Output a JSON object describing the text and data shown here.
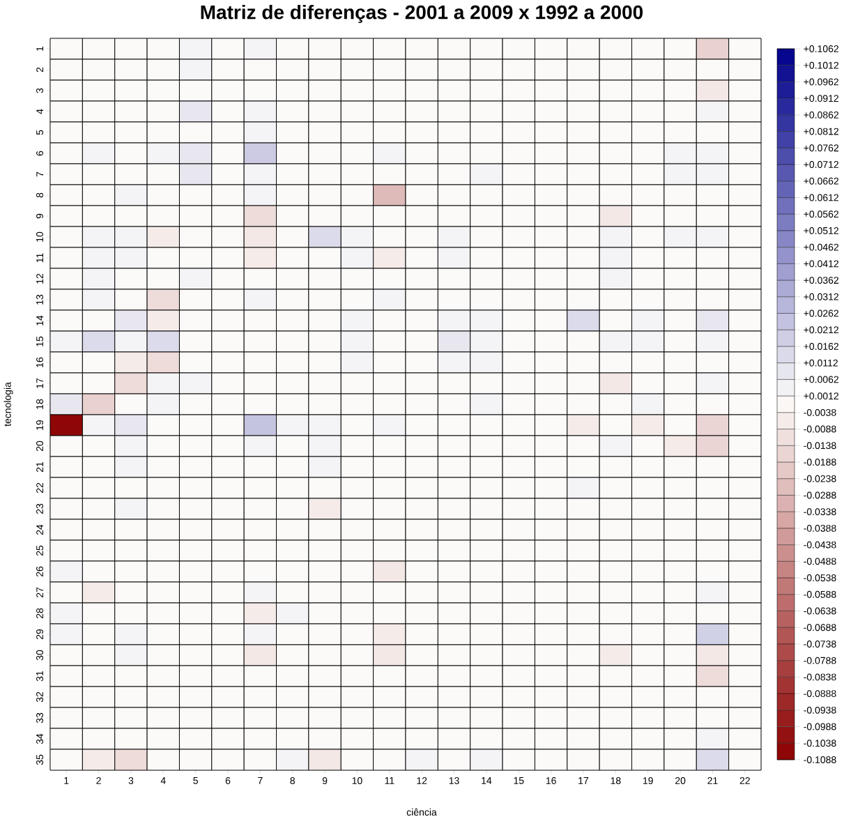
{
  "chart_data": {
    "type": "heatmap",
    "title": "Matriz de diferenças - 2001 a 2009 x 1992 a 2000",
    "xlabel": "ciência",
    "ylabel": "tecnologia",
    "categories": [
      "1",
      "2",
      "3",
      "4",
      "5",
      "6",
      "7",
      "8",
      "9",
      "10",
      "11",
      "12",
      "13",
      "14",
      "15",
      "16",
      "17",
      "18",
      "19",
      "20",
      "21",
      "22"
    ],
    "y_categories": [
      "1",
      "2",
      "3",
      "4",
      "5",
      "6",
      "7",
      "8",
      "9",
      "10",
      "11",
      "12",
      "13",
      "14",
      "15",
      "16",
      "17",
      "18",
      "19",
      "20",
      "21",
      "22",
      "23",
      "24",
      "25",
      "26",
      "27",
      "28",
      "29",
      "30",
      "31",
      "32",
      "33",
      "34",
      "35"
    ],
    "cells": [
      [
        0,
        0,
        0,
        0,
        0.003,
        0,
        0.003,
        0,
        0,
        0,
        0,
        0,
        0,
        0,
        0,
        0,
        0,
        0,
        0,
        0,
        -0.018,
        0
      ],
      [
        0,
        0,
        0,
        0,
        0.003,
        0,
        0,
        0,
        0,
        0,
        0,
        0,
        0,
        0,
        0,
        0,
        0,
        0,
        0,
        0,
        0,
        0
      ],
      [
        0,
        0,
        0,
        0,
        0,
        0,
        0,
        0,
        0,
        0,
        0,
        0,
        0,
        0,
        0,
        0,
        0,
        0,
        0,
        0,
        -0.008,
        0
      ],
      [
        0,
        0,
        0,
        0,
        0.008,
        0,
        0.003,
        0,
        0,
        0,
        0,
        0,
        0,
        0,
        0,
        0,
        0,
        0,
        0,
        0,
        0.003,
        0
      ],
      [
        0,
        0,
        0,
        0,
        0,
        0,
        0.003,
        0,
        0,
        0,
        0,
        0,
        0,
        0,
        0,
        0,
        0,
        0,
        0,
        0,
        0,
        0
      ],
      [
        0,
        0.003,
        0,
        0.003,
        0.008,
        0,
        0.02,
        0,
        0,
        0,
        0.003,
        0,
        0,
        0,
        0,
        0,
        0,
        0,
        0,
        0.003,
        0.003,
        0
      ],
      [
        0,
        0,
        0,
        0,
        0.008,
        0,
        0.003,
        0,
        0,
        0,
        0,
        0,
        0,
        0.003,
        0,
        0,
        0,
        0,
        0,
        0.003,
        0.003,
        0
      ],
      [
        0,
        0,
        0.003,
        0,
        0,
        0,
        0.003,
        0,
        0,
        0,
        -0.028,
        0,
        0,
        0,
        0,
        0,
        0,
        0,
        0,
        0,
        0,
        0
      ],
      [
        0,
        0,
        0,
        0,
        0,
        0,
        -0.013,
        0,
        0,
        0,
        0,
        0,
        0,
        0,
        0,
        0,
        0,
        -0.008,
        0,
        0,
        0,
        0
      ],
      [
        0,
        0.003,
        0.003,
        -0.006,
        0,
        0,
        -0.008,
        0,
        0.013,
        0.003,
        0,
        0,
        0.003,
        0,
        0,
        0,
        0,
        0.003,
        0,
        0.003,
        0.003,
        0
      ],
      [
        0,
        0.003,
        0.003,
        0,
        0,
        0,
        -0.006,
        0,
        0,
        0.003,
        -0.006,
        0,
        0.003,
        0,
        0,
        0,
        0,
        0.003,
        0,
        0,
        0,
        0
      ],
      [
        0,
        0.003,
        0,
        0,
        0.003,
        0,
        0,
        0,
        0,
        0,
        0,
        0,
        0,
        0,
        0,
        0,
        0,
        0.003,
        0,
        0,
        0,
        0
      ],
      [
        0,
        0.003,
        0,
        -0.013,
        0,
        0,
        0.003,
        0,
        0,
        0,
        0.003,
        0,
        0,
        0,
        0,
        0,
        0,
        0,
        0,
        0,
        0,
        0
      ],
      [
        0,
        0,
        0.008,
        -0.006,
        0,
        0,
        0,
        0,
        0,
        0.003,
        0,
        0,
        0.003,
        0.003,
        0,
        0,
        0.013,
        0,
        0.003,
        0,
        0.008,
        0
      ],
      [
        0.003,
        0.013,
        0.003,
        0.013,
        0,
        0,
        0,
        0,
        0,
        0.003,
        0,
        0,
        0.008,
        0.003,
        0,
        0,
        0,
        0.003,
        0.003,
        0,
        0.003,
        0
      ],
      [
        0,
        0,
        -0.006,
        -0.013,
        0,
        0,
        0,
        0,
        0,
        0.003,
        0,
        0,
        0.003,
        0.003,
        0,
        0,
        0,
        0,
        0,
        0,
        0,
        0
      ],
      [
        0,
        0,
        -0.013,
        0.003,
        0.003,
        0,
        0,
        0,
        0,
        0,
        0,
        0,
        0,
        0,
        0,
        0,
        0,
        -0.008,
        0,
        0,
        0.003,
        0
      ],
      [
        0.008,
        -0.018,
        0,
        0.003,
        0,
        0,
        0,
        0,
        0,
        0,
        0,
        0,
        0,
        0.003,
        0,
        0,
        0,
        0,
        0.003,
        0,
        0,
        0
      ],
      [
        -0.1063,
        0.003,
        0.008,
        0,
        0,
        0,
        0.023,
        0.003,
        0.003,
        0,
        0.003,
        0,
        0,
        0,
        0,
        0,
        -0.006,
        0,
        -0.006,
        0,
        -0.016,
        0
      ],
      [
        0,
        0,
        0.003,
        0,
        0,
        0,
        0.003,
        0,
        0.003,
        0,
        0,
        0,
        0,
        0,
        0,
        0,
        0,
        0.003,
        0,
        -0.006,
        -0.016,
        0
      ],
      [
        0,
        0,
        0.003,
        0,
        0,
        0,
        0,
        0,
        0.003,
        0,
        0,
        0,
        0,
        0,
        0,
        0,
        0,
        0,
        0,
        0,
        0,
        0
      ],
      [
        0,
        0,
        0,
        0,
        0,
        0,
        0,
        0,
        0,
        0,
        0,
        0,
        0,
        0,
        0,
        0,
        0.003,
        0,
        0,
        0,
        0,
        0
      ],
      [
        0,
        0,
        0.003,
        0,
        0,
        0,
        0,
        0,
        -0.006,
        0,
        0,
        0,
        0,
        0,
        0,
        0,
        0,
        0,
        0,
        0,
        0,
        0
      ],
      [
        0,
        0,
        0,
        0,
        0,
        0,
        0,
        0,
        0,
        0,
        0,
        0,
        0,
        0,
        0,
        0,
        0,
        0,
        0,
        0,
        0,
        0
      ],
      [
        0,
        0,
        0,
        0,
        0,
        0,
        0,
        0,
        0,
        0,
        0,
        0,
        0,
        0,
        0,
        0,
        0,
        0,
        0,
        0,
        0,
        0
      ],
      [
        0.003,
        0,
        0,
        0,
        0,
        0,
        0,
        0,
        0,
        0,
        -0.008,
        0,
        0,
        0,
        0,
        0,
        0,
        0,
        0,
        0,
        0,
        0
      ],
      [
        0,
        -0.006,
        0,
        0,
        0,
        0,
        0.003,
        0,
        0,
        0,
        0,
        0,
        0,
        0,
        0,
        0,
        0,
        0,
        0,
        0,
        0.003,
        0
      ],
      [
        0.003,
        0,
        0,
        0,
        0,
        0,
        -0.006,
        0.003,
        0,
        0,
        0,
        0,
        0,
        0,
        0,
        0,
        0,
        0,
        0,
        0,
        0,
        0
      ],
      [
        0.003,
        0,
        0.003,
        0,
        0,
        0,
        0.003,
        0,
        0,
        0,
        -0.006,
        0,
        0,
        0,
        0,
        0,
        0,
        0,
        0,
        0,
        0.018,
        0
      ],
      [
        0,
        0,
        0.003,
        0,
        0,
        0,
        -0.008,
        0,
        0,
        0,
        -0.008,
        0,
        0,
        0,
        0,
        0,
        0,
        -0.006,
        0,
        0,
        -0.008,
        0
      ],
      [
        0,
        0,
        0,
        0,
        0,
        0,
        0,
        0,
        0,
        0,
        0,
        0,
        0,
        0,
        0,
        0,
        0,
        0,
        0,
        0,
        -0.013,
        0
      ],
      [
        0,
        0,
        0,
        0,
        0,
        0,
        0,
        0,
        0,
        0,
        0,
        0,
        0,
        0,
        0,
        0,
        0,
        0,
        0,
        0,
        0,
        0
      ],
      [
        0,
        0,
        0,
        0,
        0,
        0,
        0,
        0,
        0,
        0,
        0,
        0,
        0,
        0,
        0,
        0,
        0,
        0,
        0,
        0,
        0,
        0
      ],
      [
        0,
        0,
        0,
        0,
        0,
        0,
        0,
        0,
        0,
        0,
        0,
        0,
        0,
        0,
        0,
        0,
        0,
        0,
        0,
        0,
        0.003,
        0
      ],
      [
        0,
        -0.006,
        -0.013,
        0,
        0,
        0,
        0,
        0.003,
        -0.008,
        0,
        0,
        0.003,
        0,
        0.003,
        0,
        0,
        0,
        0,
        0,
        0,
        0.013,
        0
      ]
    ],
    "clim": [
      -0.1088,
      0.1062
    ],
    "cticks": [
      {
        "value": 0.1062,
        "label": "+0.1062"
      },
      {
        "value": 0.1012,
        "label": "+0.1012"
      },
      {
        "value": 0.0962,
        "label": "+0.0962"
      },
      {
        "value": 0.0912,
        "label": "+0.0912"
      },
      {
        "value": 0.0862,
        "label": "+0.0862"
      },
      {
        "value": 0.0812,
        "label": "+0.0812"
      },
      {
        "value": 0.0762,
        "label": "+0.0762"
      },
      {
        "value": 0.0712,
        "label": "+0.0712"
      },
      {
        "value": 0.0662,
        "label": "+0.0662"
      },
      {
        "value": 0.0612,
        "label": "+0.0612"
      },
      {
        "value": 0.0562,
        "label": "+0.0562"
      },
      {
        "value": 0.0512,
        "label": "+0.0512"
      },
      {
        "value": 0.0462,
        "label": "+0.0462"
      },
      {
        "value": 0.0412,
        "label": "+0.0412"
      },
      {
        "value": 0.0362,
        "label": "+0.0362"
      },
      {
        "value": 0.0312,
        "label": "+0.0312"
      },
      {
        "value": 0.0262,
        "label": "+0.0262"
      },
      {
        "value": 0.0212,
        "label": "+0.0212"
      },
      {
        "value": 0.0162,
        "label": "+0.0162"
      },
      {
        "value": 0.0112,
        "label": "+0.0112"
      },
      {
        "value": 0.0062,
        "label": "+0.0062"
      },
      {
        "value": 0.0012,
        "label": "+0.0012"
      },
      {
        "value": -0.0038,
        "label": "-0.0038"
      },
      {
        "value": -0.0088,
        "label": "-0.0088"
      },
      {
        "value": -0.0138,
        "label": "-0.0138"
      },
      {
        "value": -0.0188,
        "label": "-0.0188"
      },
      {
        "value": -0.0238,
        "label": "-0.0238"
      },
      {
        "value": -0.0288,
        "label": "-0.0288"
      },
      {
        "value": -0.0338,
        "label": "-0.0338"
      },
      {
        "value": -0.0388,
        "label": "-0.0388"
      },
      {
        "value": -0.0438,
        "label": "-0.0438"
      },
      {
        "value": -0.0488,
        "label": "-0.0488"
      },
      {
        "value": -0.0538,
        "label": "-0.0538"
      },
      {
        "value": -0.0588,
        "label": "-0.0588"
      },
      {
        "value": -0.0638,
        "label": "-0.0638"
      },
      {
        "value": -0.0688,
        "label": "-0.0688"
      },
      {
        "value": -0.0738,
        "label": "-0.0738"
      },
      {
        "value": -0.0788,
        "label": "-0.0788"
      },
      {
        "value": -0.0838,
        "label": "-0.0838"
      },
      {
        "value": -0.0888,
        "label": "-0.0888"
      },
      {
        "value": -0.0938,
        "label": "-0.0938"
      },
      {
        "value": -0.0988,
        "label": "-0.0988"
      },
      {
        "value": -0.1038,
        "label": "-0.1038"
      },
      {
        "value": -0.1088,
        "label": "-0.1088"
      }
    ]
  }
}
